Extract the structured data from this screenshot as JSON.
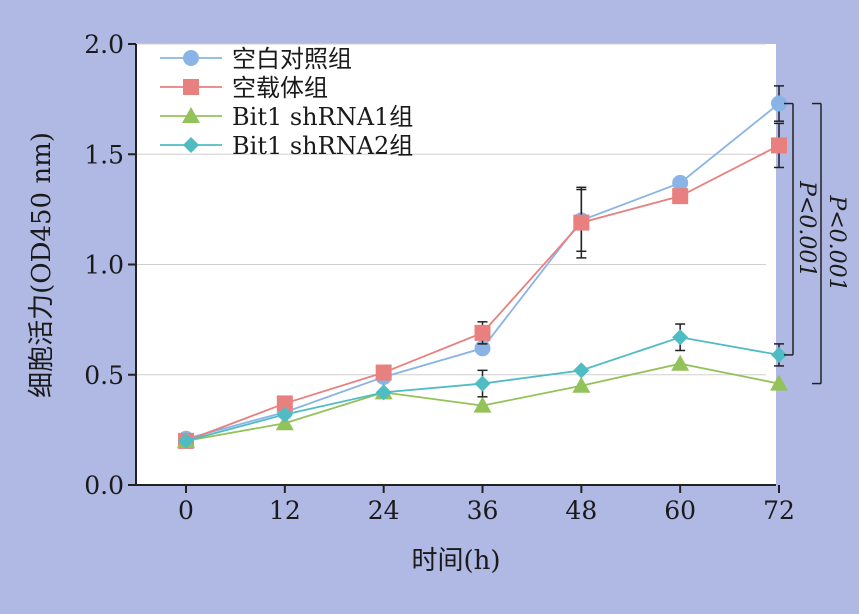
{
  "chart_data": {
    "type": "line",
    "xlabel": "时间(h)",
    "ylabel": "细胞活力(OD450 nm)",
    "x": [
      0,
      12,
      24,
      36,
      48,
      60,
      72
    ],
    "x_ticks": [
      "0",
      "12",
      "24",
      "36",
      "48",
      "60",
      "72"
    ],
    "y_ticks": [
      "0.0",
      "0.5",
      "1.0",
      "1.5",
      "2.0"
    ],
    "xlim": [
      -6,
      72
    ],
    "ylim": [
      0,
      2.0
    ],
    "grid": "horizontal",
    "legend_position": "top-left",
    "series": [
      {
        "name": "空白对照组",
        "color": "#8ab4e6",
        "marker": "circle",
        "values": [
          0.21,
          0.33,
          0.49,
          0.62,
          1.2,
          1.37,
          1.73
        ],
        "errors": [
          0,
          0,
          0,
          0,
          0.14,
          0,
          0.08
        ]
      },
      {
        "name": "空载体组",
        "color": "#e88080",
        "marker": "square",
        "values": [
          0.2,
          0.37,
          0.51,
          0.69,
          1.19,
          1.31,
          1.54
        ],
        "errors": [
          0,
          0,
          0,
          0.05,
          0.16,
          0,
          0.1
        ]
      },
      {
        "name": "Bit1 shRNA1组",
        "color": "#94c25a",
        "marker": "triangle",
        "values": [
          0.2,
          0.28,
          0.42,
          0.36,
          0.45,
          0.55,
          0.46
        ],
        "errors": [
          0,
          0,
          0,
          0,
          0,
          0,
          0
        ]
      },
      {
        "name": "Bit1 shRNA2组",
        "color": "#4fbcc4",
        "marker": "diamond",
        "values": [
          0.2,
          0.32,
          0.42,
          0.46,
          0.52,
          0.67,
          0.59
        ],
        "errors": [
          0,
          0,
          0,
          0.06,
          0,
          0.06,
          0.05
        ]
      }
    ],
    "annotations": [
      {
        "text": "P<0.001",
        "from": 1.73,
        "to": 0.59
      },
      {
        "text": "P<0.001",
        "from": 1.73,
        "to": 0.46
      }
    ]
  }
}
